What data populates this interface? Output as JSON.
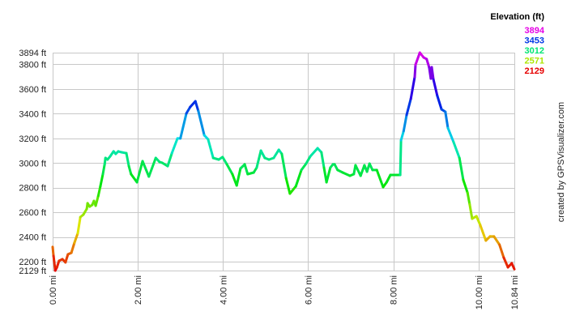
{
  "chart_data": {
    "type": "line",
    "title": "",
    "xlabel": "",
    "ylabel": "",
    "x_unit": "mi",
    "y_unit": "ft",
    "xlim": [
      0,
      10.84
    ],
    "ylim": [
      2129,
      3894
    ],
    "grid": true,
    "x_ticks": [
      {
        "value": 0,
        "label": "0.00 mi"
      },
      {
        "value": 2,
        "label": "2.00 mi"
      },
      {
        "value": 4,
        "label": "4.00 mi"
      },
      {
        "value": 6,
        "label": "6.00 mi"
      },
      {
        "value": 8,
        "label": "8.00 mi"
      },
      {
        "value": 10,
        "label": "10.00 mi"
      },
      {
        "value": 10.84,
        "label": "10.84 mi"
      }
    ],
    "y_ticks": [
      {
        "value": 3894,
        "label": "3894 ft"
      },
      {
        "value": 3800,
        "label": "3800 ft"
      },
      {
        "value": 3600,
        "label": "3600 ft"
      },
      {
        "value": 3400,
        "label": "3400 ft"
      },
      {
        "value": 3200,
        "label": "3200 ft"
      },
      {
        "value": 3000,
        "label": "3000 ft"
      },
      {
        "value": 2800,
        "label": "2800 ft"
      },
      {
        "value": 2600,
        "label": "2600 ft"
      },
      {
        "value": 2400,
        "label": "2400 ft"
      },
      {
        "value": 2200,
        "label": "2200 ft"
      },
      {
        "value": 2129,
        "label": "2129 ft"
      }
    ],
    "legend": {
      "title": "Elevation (ft)",
      "placement": "top-right",
      "entries": [
        "3894",
        "3453",
        "3012",
        "2571",
        "2129"
      ]
    },
    "credit": "created by GPSVisualizer.com",
    "series": [
      {
        "name": "Elevation",
        "x": [
          0.0,
          0.02,
          0.06,
          0.1,
          0.15,
          0.23,
          0.3,
          0.36,
          0.44,
          0.51,
          0.59,
          0.65,
          0.72,
          0.8,
          0.82,
          0.87,
          0.93,
          0.97,
          1.01,
          1.07,
          1.12,
          1.18,
          1.22,
          1.24,
          1.29,
          1.35,
          1.43,
          1.48,
          1.54,
          1.62,
          1.73,
          1.79,
          1.84,
          1.98,
          2.11,
          2.26,
          2.42,
          2.51,
          2.57,
          2.7,
          2.8,
          2.93,
          3.0,
          3.14,
          3.23,
          3.35,
          3.42,
          3.56,
          3.65,
          3.77,
          3.9,
          3.99,
          4.09,
          4.22,
          4.32,
          4.41,
          4.51,
          4.58,
          4.72,
          4.79,
          4.89,
          4.98,
          5.08,
          5.19,
          5.31,
          5.38,
          5.48,
          5.57,
          5.71,
          5.84,
          5.95,
          6.05,
          6.22,
          6.31,
          6.37,
          6.43,
          6.52,
          6.58,
          6.62,
          6.69,
          6.81,
          6.98,
          7.07,
          7.11,
          7.23,
          7.32,
          7.38,
          7.44,
          7.51,
          7.61,
          7.76,
          7.84,
          7.93,
          8.16,
          8.18,
          8.24,
          8.31,
          8.41,
          8.5,
          8.52,
          8.62,
          8.71,
          8.78,
          8.84,
          8.88,
          8.9,
          8.94,
          9.03,
          9.13,
          9.22,
          9.28,
          9.41,
          9.55,
          9.64,
          9.74,
          9.79,
          9.85,
          9.95,
          10.04,
          10.17,
          10.27,
          10.36,
          10.49,
          10.59,
          10.69,
          10.78,
          10.84
        ],
        "y": [
          2320,
          2247,
          2129,
          2155,
          2208,
          2221,
          2195,
          2260,
          2273,
          2352,
          2431,
          2562,
          2582,
          2628,
          2674,
          2647,
          2661,
          2693,
          2654,
          2733,
          2811,
          2910,
          2989,
          3041,
          3028,
          3054,
          3094,
          3074,
          3094,
          3087,
          3080,
          2975,
          2910,
          2844,
          3015,
          2890,
          3041,
          3008,
          3002,
          2975,
          3080,
          3199,
          3199,
          3402,
          3454,
          3500,
          3422,
          3225,
          3192,
          3041,
          3028,
          3048,
          2989,
          2910,
          2818,
          2956,
          2989,
          2910,
          2923,
          2962,
          3100,
          3041,
          3028,
          3041,
          3107,
          3074,
          2877,
          2752,
          2811,
          2943,
          2995,
          3054,
          3120,
          3087,
          2962,
          2844,
          2962,
          2989,
          2989,
          2943,
          2923,
          2897,
          2910,
          2982,
          2897,
          2982,
          2930,
          2995,
          2943,
          2943,
          2805,
          2844,
          2903,
          2903,
          3185,
          3258,
          3389,
          3520,
          3697,
          3796,
          3894,
          3855,
          3842,
          3776,
          3684,
          3776,
          3677,
          3546,
          3435,
          3415,
          3284,
          3172,
          3041,
          2864,
          2759,
          2667,
          2549,
          2569,
          2497,
          2372,
          2405,
          2405,
          2339,
          2234,
          2155,
          2188,
          2140
        ]
      }
    ]
  }
}
